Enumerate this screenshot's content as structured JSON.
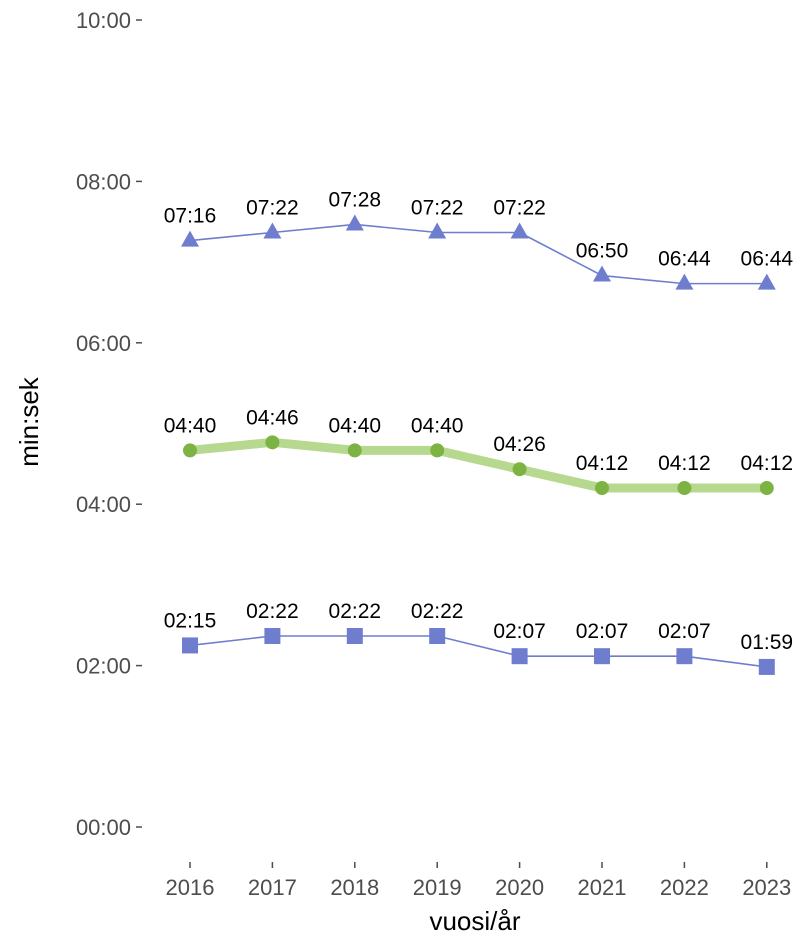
{
  "chart_data": {
    "type": "line",
    "title": "",
    "xlabel": "vuosi/år",
    "ylabel": "min:sek",
    "x": [
      "2016",
      "2017",
      "2018",
      "2019",
      "2020",
      "2021",
      "2022",
      "2023"
    ],
    "y_unit": "min:sek",
    "ylim": [
      "00:00",
      "10:00"
    ],
    "yticks": [
      "00:00",
      "02:00",
      "04:00",
      "06:00",
      "08:00",
      "10:00"
    ],
    "grid": false,
    "legend": "none",
    "series": [
      {
        "marker": "triangle",
        "color": "#6f7dcf",
        "values": [
          "07:16",
          "07:22",
          "07:28",
          "07:22",
          "07:22",
          "06:50",
          "06:44",
          "06:44"
        ]
      },
      {
        "marker": "circle",
        "color": "#7cb342",
        "line_color": "#b7d98f",
        "values": [
          "04:40",
          "04:46",
          "04:40",
          "04:40",
          "04:26",
          "04:12",
          "04:12",
          "04:12"
        ]
      },
      {
        "marker": "square",
        "color": "#6f7dcf",
        "values": [
          "02:15",
          "02:22",
          "02:22",
          "02:22",
          "02:07",
          "02:07",
          "02:07",
          "01:59"
        ]
      }
    ]
  }
}
